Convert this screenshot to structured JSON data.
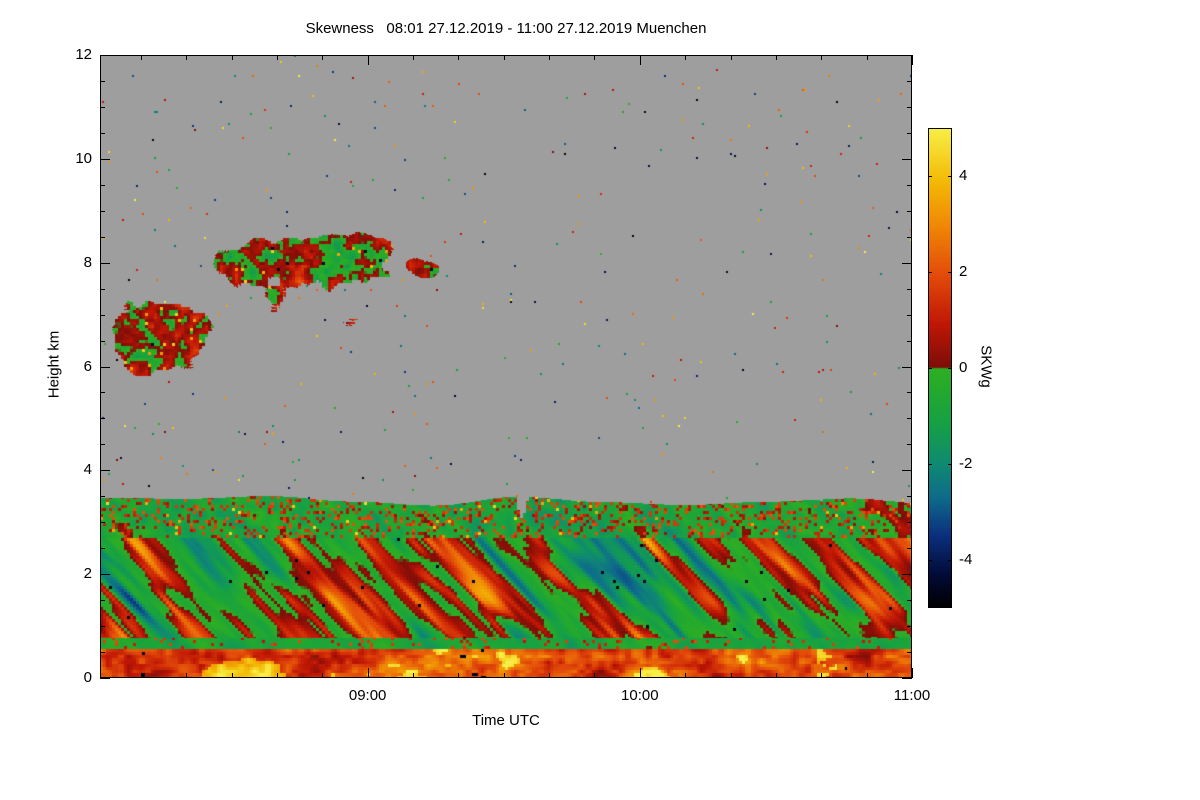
{
  "chart_data": {
    "type": "heatmap",
    "title": "Skewness   08:01 27.12.2019 - 11:00 27.12.2019 Muenchen",
    "time_start_utc": "08:01 27.12.2019",
    "time_end_utc": "11:00 27.12.2019",
    "location": "Muenchen",
    "xlabel": "Time UTC",
    "ylabel": "Height km",
    "x_total_minutes": 179,
    "x_ticks": [
      {
        "label": "09:00",
        "minutes": 59
      },
      {
        "label": "10:00",
        "minutes": 119
      },
      {
        "label": "11:00",
        "minutes": 179
      }
    ],
    "x_minor_step_minutes": 10,
    "x_first_minor_offset": 9,
    "ylim": [
      0,
      12
    ],
    "y_major_ticks": [
      0,
      2,
      4,
      6,
      8,
      10,
      12
    ],
    "y_minor_step": 0.5,
    "colorbar": {
      "label": "SKWg",
      "vmin": -5,
      "vmax": 5,
      "ticks": [
        4,
        2,
        0,
        -2,
        -4
      ],
      "stops": [
        {
          "v": -5.0,
          "c": "#000000"
        },
        {
          "v": -4.3,
          "c": "#020b38"
        },
        {
          "v": -3.5,
          "c": "#0b2f7d"
        },
        {
          "v": -2.7,
          "c": "#0e6b8a"
        },
        {
          "v": -2.0,
          "c": "#0f8a72"
        },
        {
          "v": -1.2,
          "c": "#15a046"
        },
        {
          "v": -0.3,
          "c": "#27ab28"
        },
        {
          "v": -0.02,
          "c": "#2fae24"
        },
        {
          "v": 0.02,
          "c": "#7c0e08"
        },
        {
          "v": 0.9,
          "c": "#bf1605"
        },
        {
          "v": 1.9,
          "c": "#e2490a"
        },
        {
          "v": 2.9,
          "c": "#ef8406"
        },
        {
          "v": 3.9,
          "c": "#f3bb05"
        },
        {
          "v": 5.0,
          "c": "#f8ef49"
        }
      ]
    },
    "no_data_color": "#9e9e9e",
    "background_color": "#ffffff",
    "field": {
      "bl_top_km": 3.42,
      "bl_top_wiggle": 0.25,
      "zones": {
        "upper_green_top": 2.7,
        "green_band_top": 0.78,
        "surface_top": 0.55
      },
      "cloud_patches": [
        {
          "tc": 0.07,
          "tr": 0.1,
          "hc": 6.55,
          "hr": 0.95
        },
        {
          "tc": 0.255,
          "tr": 0.125,
          "hc": 7.85,
          "hr": 1.0
        },
        {
          "tc": 0.402,
          "tr": 0.036,
          "hc": 7.9,
          "hr": 0.28
        }
      ],
      "hot_spots": [
        {
          "t": [
            0.11,
            0.29
          ],
          "h": 0.4,
          "boost": 1.8
        },
        {
          "t": [
            0.883,
            0.908
          ],
          "h": 0.8,
          "boost": 2.2
        }
      ],
      "black_spot_t_ranges": [
        [
          0.05,
          0.14
        ],
        [
          0.44,
          0.475
        ],
        [
          0.917,
          0.955
        ]
      ],
      "speckle_fraction": 0.0035
    },
    "seed": 7
  }
}
